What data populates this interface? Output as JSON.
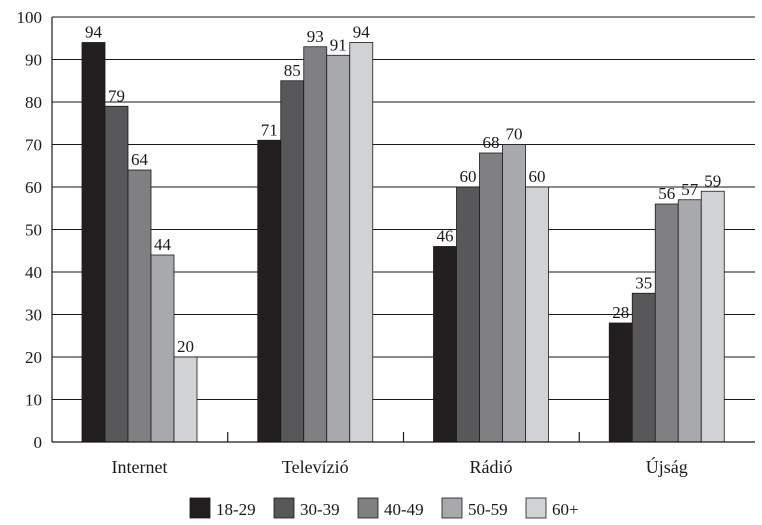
{
  "chart_data": {
    "type": "bar",
    "categories": [
      "Internet",
      "Televízió",
      "Rádió",
      "Újság"
    ],
    "series": [
      {
        "name": "18-29",
        "color": "#231f20",
        "values": [
          94,
          71,
          46,
          28
        ]
      },
      {
        "name": "30-39",
        "color": "#58585a",
        "values": [
          79,
          85,
          60,
          35
        ]
      },
      {
        "name": "40-49",
        "color": "#808083",
        "values": [
          64,
          93,
          68,
          56
        ]
      },
      {
        "name": "50-59",
        "color": "#a7a9ac",
        "values": [
          44,
          91,
          70,
          57
        ]
      },
      {
        "name": "60+",
        "color": "#d1d2d4",
        "values": [
          20,
          94,
          60,
          59
        ]
      }
    ],
    "ylim": [
      0,
      100
    ],
    "yticks": [
      0,
      10,
      20,
      30,
      40,
      50,
      60,
      70,
      80,
      90,
      100
    ],
    "grid": true,
    "legend_position": "bottom",
    "title": "",
    "xlabel": "",
    "ylabel": ""
  }
}
